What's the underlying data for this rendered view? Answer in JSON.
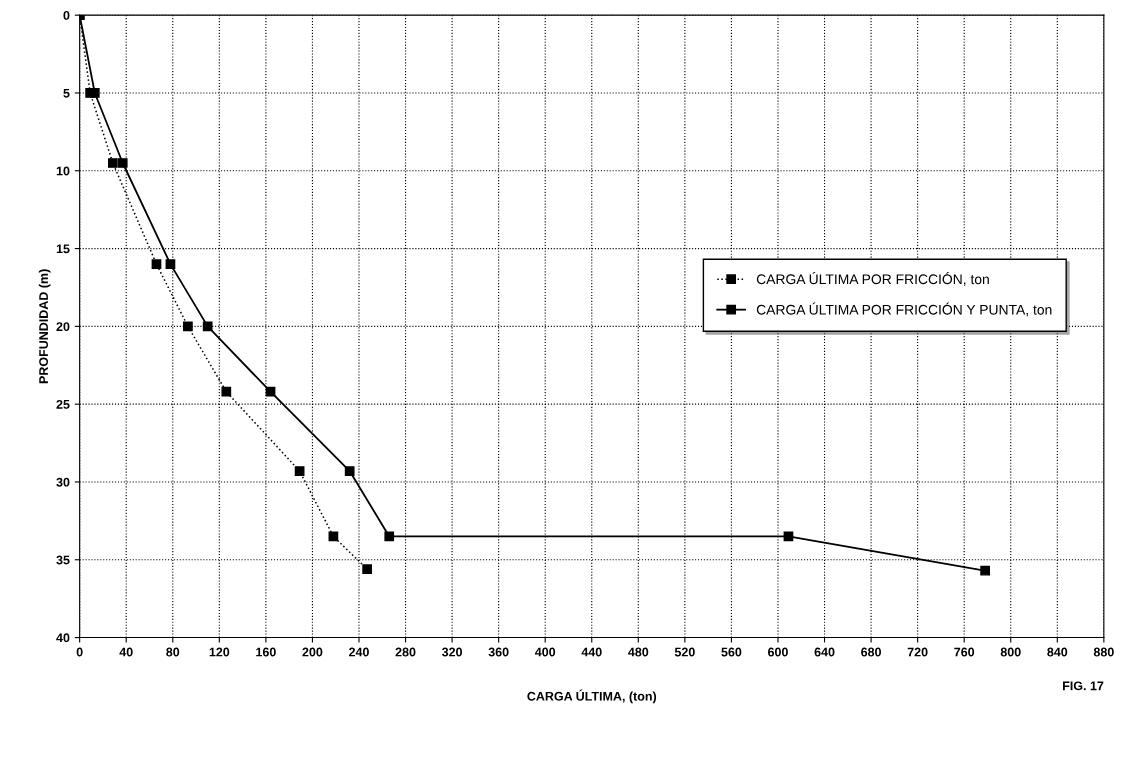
{
  "chart_data": {
    "type": "line",
    "xlabel": "CARGA ÚLTIMA, (ton)",
    "ylabel": "PROFUNDIDAD (m)",
    "annotations": [
      "FIG. 17"
    ],
    "series": [
      {
        "name": "CARGA ÚLTIMA POR FRICCIÓN, ton",
        "color": "#000000",
        "line_style": "dotted",
        "x": [
          0,
          9,
          28.5,
          66,
          93,
          126,
          189,
          218,
          247
        ],
        "values": [
          0,
          5,
          9.5,
          16,
          20,
          24.2,
          29.3,
          33.5,
          35.6
        ]
      },
      {
        "name": "CARGA ÚLTIMA POR FRICCIÓN Y PUNTA, ton",
        "color": "#000000",
        "line_style": "solid",
        "x": [
          0,
          13,
          37,
          78,
          110,
          164,
          232,
          266,
          609,
          778
        ],
        "values": [
          0,
          5,
          9.5,
          16,
          20,
          24.2,
          29.3,
          33.5,
          33.5,
          35.7
        ]
      }
    ],
    "xlim": [
      0,
      880
    ],
    "xticks": [
      0,
      40,
      80,
      120,
      160,
      200,
      240,
      280,
      320,
      360,
      400,
      440,
      480,
      520,
      560,
      600,
      640,
      680,
      720,
      760,
      800,
      840,
      880
    ],
    "ylim": [
      40,
      0
    ],
    "yticks": [
      0,
      5,
      10,
      15,
      20,
      25,
      30,
      35,
      40
    ],
    "grid": true,
    "legend": "right",
    "marker": "square"
  }
}
